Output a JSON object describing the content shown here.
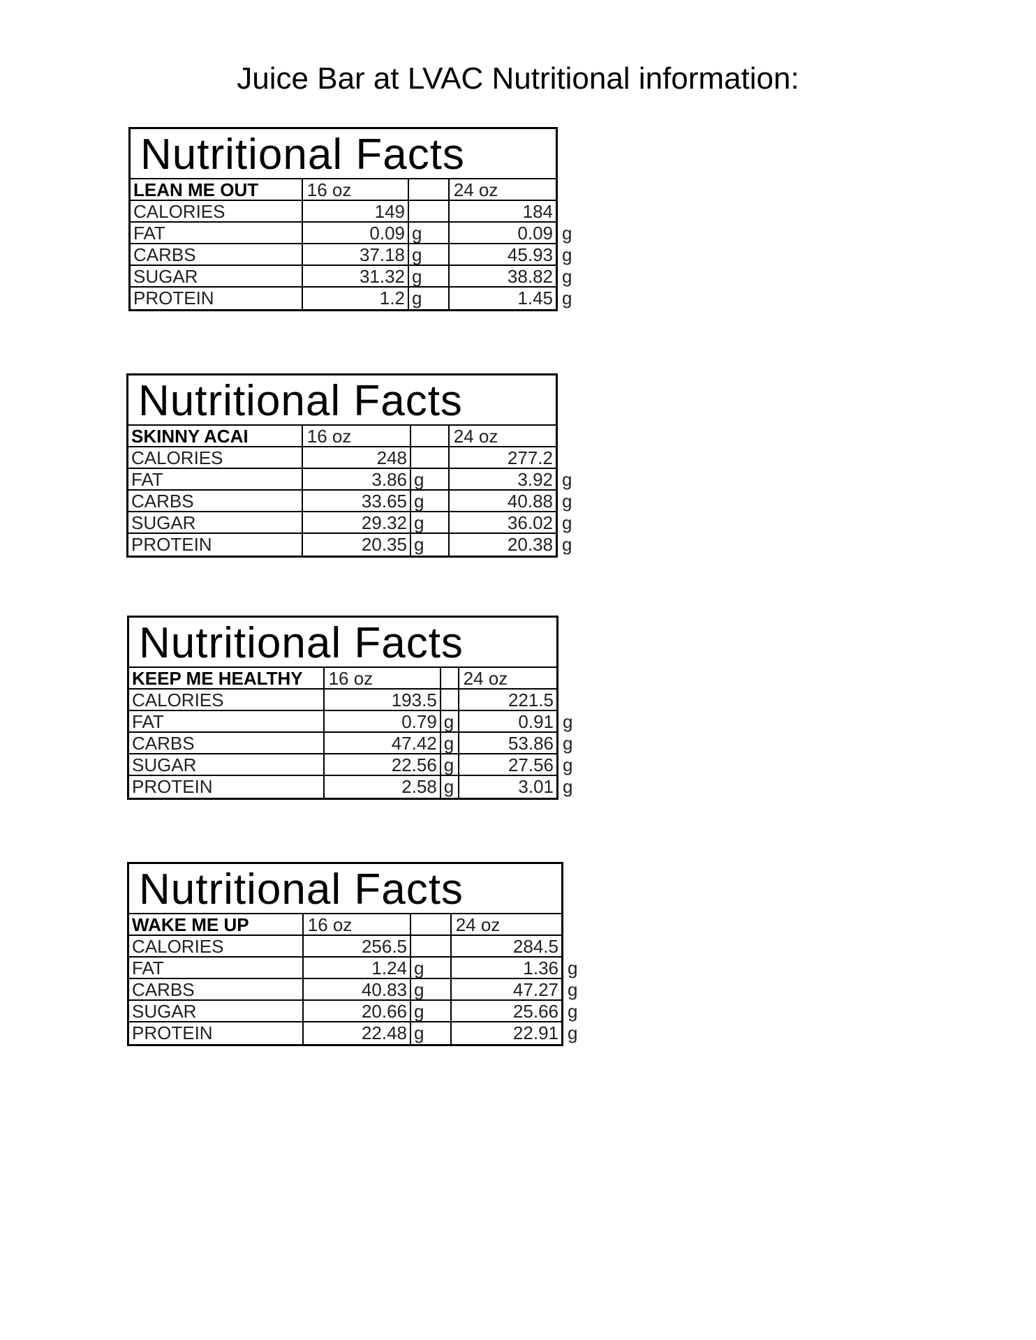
{
  "document": {
    "title": "Juice Bar at LVAC Nutritional information:"
  },
  "tables": [
    {
      "heading": "Nutritional Facts",
      "name": "LEAN ME OUT",
      "size_a": "16 oz",
      "size_b": "24 oz",
      "rows": [
        {
          "label": "CALORIES",
          "a": "149",
          "a_unit": "",
          "b": "184",
          "b_unit": ""
        },
        {
          "label": "FAT",
          "a": "0.09",
          "a_unit": "g",
          "b": "0.09",
          "b_unit": "g"
        },
        {
          "label": "CARBS",
          "a": "37.18",
          "a_unit": "g",
          "b": "45.93",
          "b_unit": "g"
        },
        {
          "label": "SUGAR",
          "a": "31.32",
          "a_unit": "g",
          "b": "38.82",
          "b_unit": "g"
        },
        {
          "label": "PROTEIN",
          "a": "1.2",
          "a_unit": "g",
          "b": "1.45",
          "b_unit": "g"
        }
      ]
    },
    {
      "heading": "Nutritional Facts",
      "name": "SKINNY ACAI",
      "size_a": "16 oz",
      "size_b": "24 oz",
      "rows": [
        {
          "label": "CALORIES",
          "a": "248",
          "a_unit": "",
          "b": "277.2",
          "b_unit": ""
        },
        {
          "label": "FAT",
          "a": "3.86",
          "a_unit": "g",
          "b": "3.92",
          "b_unit": "g"
        },
        {
          "label": "CARBS",
          "a": "33.65",
          "a_unit": "g",
          "b": "40.88",
          "b_unit": "g"
        },
        {
          "label": "SUGAR",
          "a": "29.32",
          "a_unit": "g",
          "b": "36.02",
          "b_unit": "g"
        },
        {
          "label": "PROTEIN",
          "a": "20.35",
          "a_unit": "g",
          "b": "20.38",
          "b_unit": "g"
        }
      ]
    },
    {
      "heading": "Nutritional Facts",
      "name": "KEEP ME HEALTHY",
      "size_a": "16 oz",
      "size_b": "24 oz",
      "rows": [
        {
          "label": "CALORIES",
          "a": "193.5",
          "a_unit": "",
          "b": "221.5",
          "b_unit": ""
        },
        {
          "label": "FAT",
          "a": "0.79",
          "a_unit": "g",
          "b": "0.91",
          "b_unit": "g"
        },
        {
          "label": "CARBS",
          "a": "47.42",
          "a_unit": "g",
          "b": "53.86",
          "b_unit": "g"
        },
        {
          "label": "SUGAR",
          "a": "22.56",
          "a_unit": "g",
          "b": "27.56",
          "b_unit": "g"
        },
        {
          "label": "PROTEIN",
          "a": "2.58",
          "a_unit": "g",
          "b": "3.01",
          "b_unit": "g"
        }
      ]
    },
    {
      "heading": "Nutritional Facts",
      "name": "WAKE ME UP",
      "size_a": "16 oz",
      "size_b": "24 oz",
      "rows": [
        {
          "label": "CALORIES",
          "a": "256.5",
          "a_unit": "",
          "b": "284.5",
          "b_unit": ""
        },
        {
          "label": "FAT",
          "a": "1.24",
          "a_unit": "g",
          "b": "1.36",
          "b_unit": "g"
        },
        {
          "label": "CARBS",
          "a": "40.83",
          "a_unit": "g",
          "b": "47.27",
          "b_unit": "g"
        },
        {
          "label": "SUGAR",
          "a": "20.66",
          "a_unit": "g",
          "b": "25.66",
          "b_unit": "g"
        },
        {
          "label": "PROTEIN",
          "a": "22.48",
          "a_unit": "g",
          "b": "22.91",
          "b_unit": "g"
        }
      ]
    }
  ]
}
